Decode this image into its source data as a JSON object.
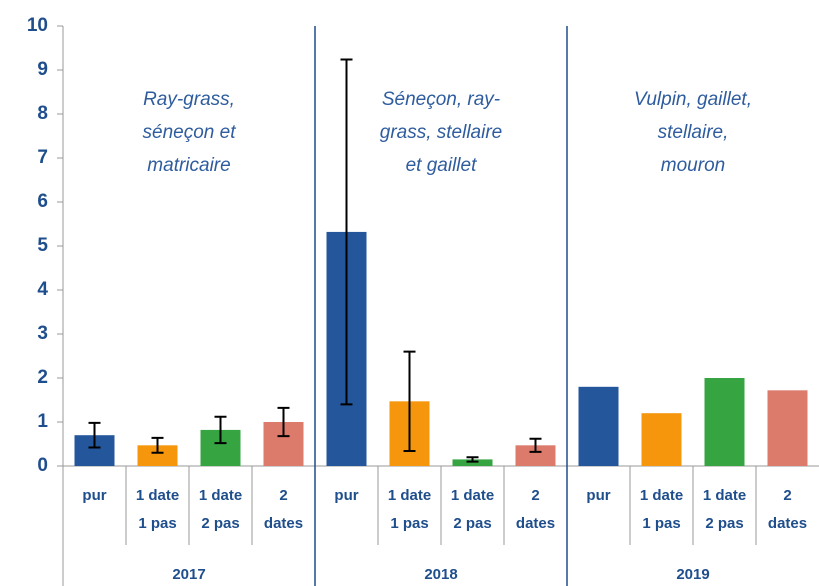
{
  "chart_data": {
    "type": "bar",
    "groups": [
      "2017",
      "2018",
      "2019"
    ],
    "categories": [
      [
        "pur"
      ],
      [
        "1 date",
        "1 pas"
      ],
      [
        "1 date",
        "2 pas"
      ],
      [
        "2",
        "dates"
      ],
      [
        "pur"
      ],
      [
        "1 date",
        "1 pas"
      ],
      [
        "1 date",
        "2 pas"
      ],
      [
        "2",
        "dates"
      ],
      [
        "pur"
      ],
      [
        "1 date",
        "1 pas"
      ],
      [
        "1 date",
        "2 pas"
      ],
      [
        "2",
        "dates"
      ]
    ],
    "values": [
      0.7,
      0.47,
      0.82,
      1.0,
      5.32,
      1.47,
      0.15,
      0.47,
      1.8,
      1.2,
      2.0,
      1.72
    ],
    "errors": [
      0.28,
      0.17,
      0.3,
      0.32,
      3.92,
      1.13,
      0.05,
      0.15,
      null,
      null,
      null,
      null
    ],
    "colors": [
      "#23569b",
      "#f5960c",
      "#35a441",
      "#dc7a6b",
      "#23569b",
      "#f5960c",
      "#35a441",
      "#dc7a6b",
      "#23569b",
      "#f5960c",
      "#35a441",
      "#dc7a6b"
    ],
    "annotations": [
      [
        "Ray-grass,",
        "séneçon et",
        "matricaire"
      ],
      [
        "Séneçon, ray-",
        "grass, stellaire",
        "et gaillet"
      ],
      [
        "Vulpin, gaillet,",
        "stellaire,",
        "mouron"
      ]
    ],
    "ylim": [
      0,
      10
    ],
    "yticks": [
      0,
      1,
      2,
      3,
      4,
      5,
      6,
      7,
      8,
      9,
      10
    ]
  }
}
